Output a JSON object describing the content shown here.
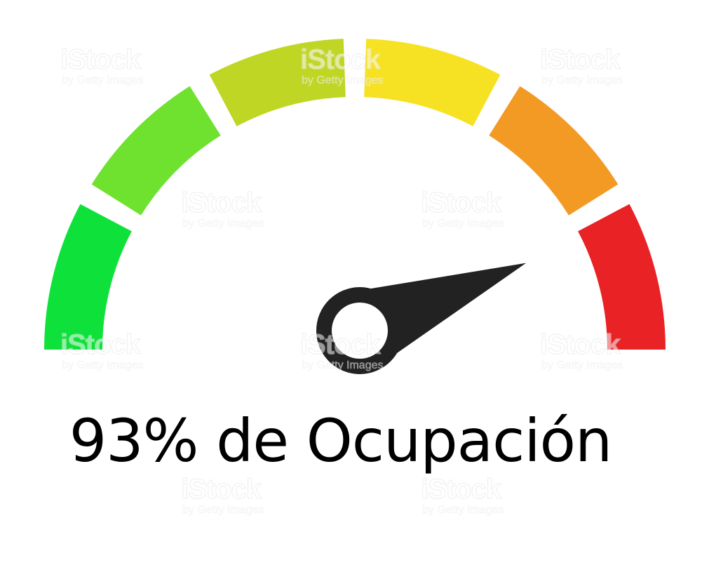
{
  "gauge": {
    "value_percent": 93,
    "segments": [
      {
        "color": "#0ee23a"
      },
      {
        "color": "#6ee22f"
      },
      {
        "color": "#bfd624"
      },
      {
        "color": "#f6e222"
      },
      {
        "color": "#f39a25"
      },
      {
        "color": "#e92225"
      }
    ],
    "needle_color": "#222222"
  },
  "caption": {
    "text": "93% de Ocupación"
  },
  "watermark": {
    "brand": "iStock",
    "sub": "by Getty Images"
  }
}
